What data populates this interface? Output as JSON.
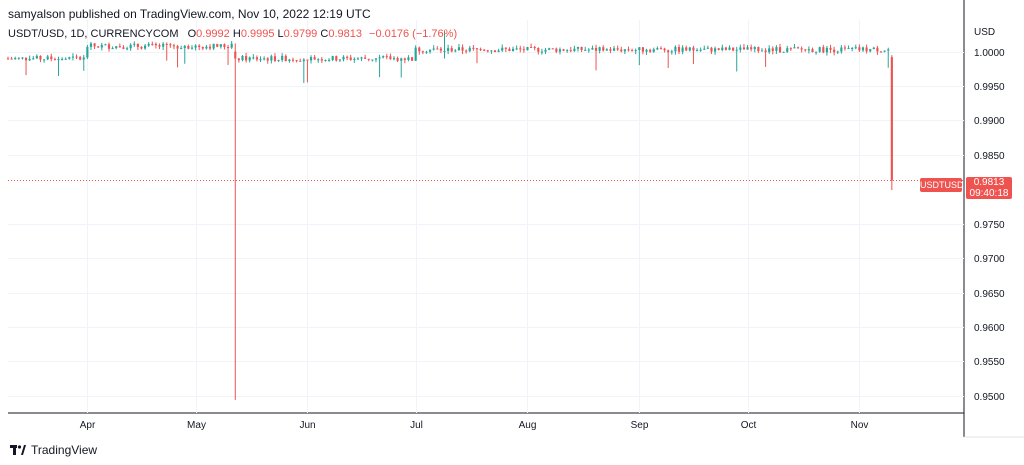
{
  "header": {
    "published_text": "samyalson published on TradingView.com, Nov 10, 2022 12:19 UTC"
  },
  "legend": {
    "symbol": "USDT/USD, 1D, CURRENCYCOM",
    "open_label": "O",
    "open": "0.9992",
    "high_label": "H",
    "high": "0.9995",
    "low_label": "L",
    "low": "0.9799",
    "close_label": "C",
    "close": "0.9813",
    "change": "−0.0176 (−1.76%)"
  },
  "price_badge": {
    "symbol": "USDTUSD",
    "price": "0.9813",
    "countdown": "09:40:18"
  },
  "footer": {
    "brand": "TradingView"
  },
  "colors": {
    "up": "#26a69a",
    "down": "#ef5350",
    "grid": "#f0f3fa",
    "axis_text": "#131722"
  },
  "chart_data": {
    "type": "candlestick",
    "currency_label": "USD",
    "y_axis": {
      "min": 0.9475,
      "max": 1.0046,
      "ticks": [
        1.0,
        0.995,
        0.99,
        0.985,
        0.975,
        0.97,
        0.965,
        0.96,
        0.955,
        0.95
      ],
      "tick_labels": [
        "1.0000",
        "0.9950",
        "0.9900",
        "0.9850",
        "0.9750",
        "0.9700",
        "0.9650",
        "0.9600",
        "0.9550",
        "0.9500"
      ]
    },
    "x_axis": {
      "start": "2022-03-10",
      "end": "2022-11-30",
      "ticks": [
        "2022-04-01",
        "2022-05-01",
        "2022-06-01",
        "2022-07-01",
        "2022-08-01",
        "2022-09-01",
        "2022-10-01",
        "2022-11-01"
      ],
      "tick_labels": [
        "Apr",
        "May",
        "Jun",
        "Jul",
        "Aug",
        "Sep",
        "Oct",
        "Nov"
      ]
    },
    "last_price": 0.9813,
    "baseline": 1.0,
    "notable_candles": [
      {
        "date": "2022-05-12",
        "open": 1.0,
        "high": 1.0012,
        "low": 0.9494,
        "close": 0.999
      },
      {
        "date": "2022-07-09",
        "open": 1.0,
        "high": 1.003,
        "low": 0.999,
        "close": 1.0001
      },
      {
        "date": "2022-11-10",
        "open": 0.9992,
        "high": 0.9995,
        "low": 0.9799,
        "close": 0.9813
      }
    ]
  }
}
